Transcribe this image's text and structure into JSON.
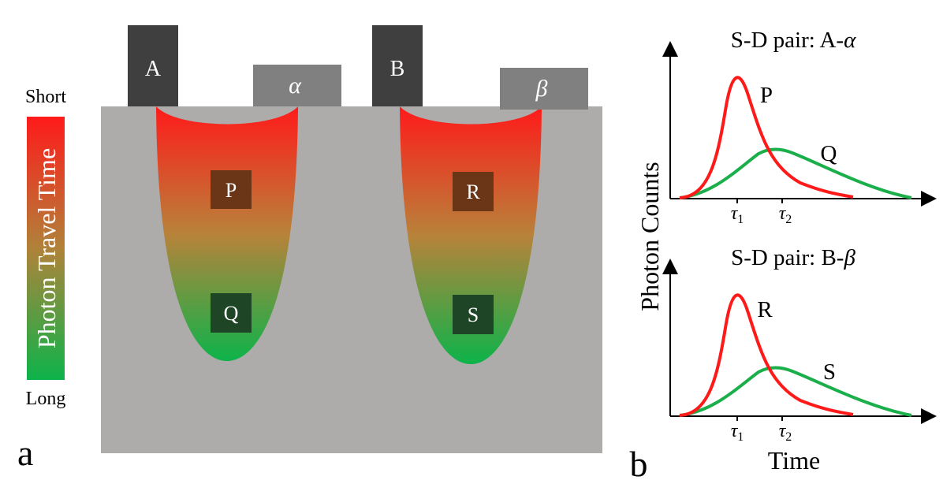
{
  "colorbar": {
    "top_label": "Short",
    "bottom_label": "Long",
    "title": "Photon Travel Time",
    "color_short": "#ff1a1a",
    "color_long": "#0db34a"
  },
  "panel_a": {
    "label": "a",
    "tissue_color": "#aeabab",
    "sources": [
      {
        "label": "A"
      },
      {
        "label": "B"
      }
    ],
    "detectors": [
      {
        "label": "α"
      },
      {
        "label": "β"
      }
    ],
    "regions": [
      {
        "label": "P"
      },
      {
        "label": "Q"
      },
      {
        "label": "R"
      },
      {
        "label": "S"
      }
    ]
  },
  "panel_b": {
    "label": "b",
    "ylabel": "Photon Counts",
    "xlabel": "Time",
    "tau1_main": "τ",
    "tau1_sub": "1",
    "tau2_main": "τ",
    "tau2_sub": "2",
    "top_title_prefix": "S-D pair: A-",
    "top_title_symbol": "α",
    "bottom_title_prefix": "S-D pair: B-",
    "bottom_title_symbol": "β"
  },
  "chart_data": [
    {
      "type": "line",
      "title": "S-D pair: A-α",
      "xlabel": "Time",
      "ylabel": "Photon Counts",
      "xticks": [
        "τ1",
        "τ2"
      ],
      "series": [
        {
          "name": "P",
          "color": "#ff1a1a"
        },
        {
          "name": "Q",
          "color": "#1aaf4b"
        }
      ]
    },
    {
      "type": "line",
      "title": "S-D pair: B-β",
      "xlabel": "Time",
      "ylabel": "Photon Counts",
      "xticks": [
        "τ1",
        "τ2"
      ],
      "series": [
        {
          "name": "R",
          "color": "#ff1a1a"
        },
        {
          "name": "S",
          "color": "#1aaf4b"
        }
      ]
    }
  ]
}
